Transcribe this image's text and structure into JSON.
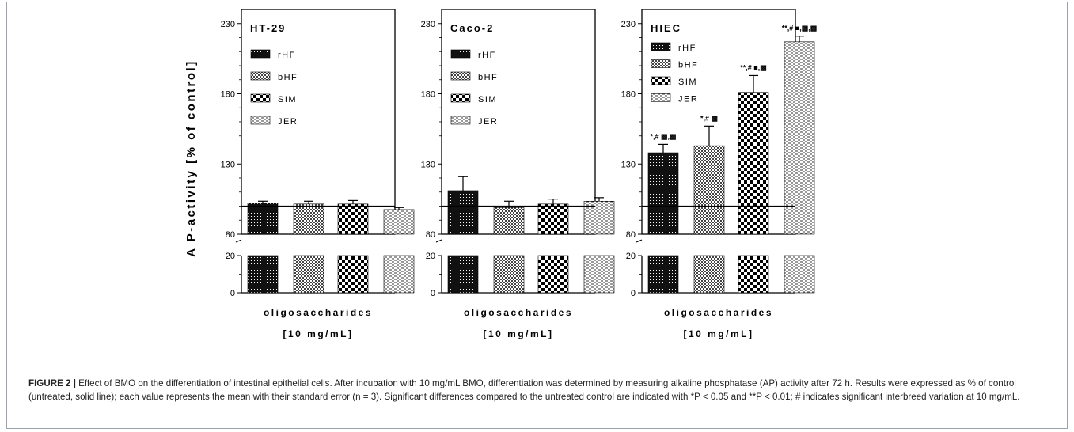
{
  "chart_data": {
    "type": "bar",
    "ylabel": "A P-activity  [% of control]",
    "xlabel_line1": "oligosaccharides",
    "xlabel_line2": "[10 mg/mL]",
    "yticks_upper": [
      "80",
      "130",
      "180",
      "230"
    ],
    "yticks_lower": [
      "0",
      "20"
    ],
    "control_level": 100,
    "axis_break": [
      20,
      80
    ],
    "ylim": [
      0,
      240
    ],
    "categories": [
      "rHF",
      "bHF",
      "SIM",
      "JER"
    ],
    "legend": [
      "rHF",
      "bHF",
      "SIM",
      "JER"
    ],
    "panels": [
      {
        "title": "HT-29",
        "values": [
          102,
          101.5,
          101.5,
          97.5
        ],
        "errors": [
          1.5,
          2,
          2.5,
          1.5
        ],
        "annotations": [
          "",
          "",
          "",
          ""
        ]
      },
      {
        "title": "Caco-2",
        "values": [
          111,
          99,
          101.5,
          103.5
        ],
        "errors": [
          10,
          4.5,
          3.5,
          2.5
        ],
        "annotations": [
          "",
          "",
          "",
          ""
        ]
      },
      {
        "title": "HIEC",
        "values": [
          138,
          143,
          181,
          217
        ],
        "errors": [
          6,
          14,
          12,
          4
        ],
        "annotations": [
          "*,# ▩,▩",
          "*,# ▩",
          "**,# ■,▩",
          "**,# ■,▩,▩"
        ]
      }
    ]
  },
  "caption": {
    "figure_label": "FIGURE 2 |",
    "text": " Effect of BMO on the differentiation of intestinal epithelial cells. After incubation with 10 mg/mL BMO, differentiation was determined by measuring alkaline phosphatase (AP) activity after 72 h. Results were expressed as % of control (untreated, solid line); each value represents the mean with their standard error (n = 3). Significant differences compared to the untreated control are indicated with *P < 0.05 and **P < 0.01; # indicates significant interbreed variation at 10 mg/mL."
  }
}
